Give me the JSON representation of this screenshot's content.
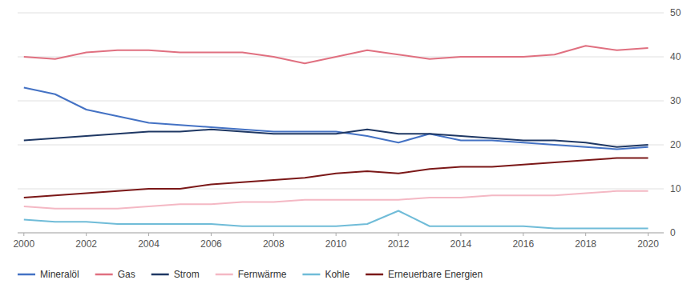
{
  "chart_data": {
    "type": "line",
    "x": [
      2000,
      2001,
      2002,
      2003,
      2004,
      2005,
      2006,
      2007,
      2008,
      2009,
      2010,
      2011,
      2012,
      2013,
      2014,
      2015,
      2016,
      2017,
      2018,
      2019,
      2020
    ],
    "series": [
      {
        "name": "Mineralöl",
        "color": "#4472c4",
        "values": [
          33,
          31.5,
          28,
          26.5,
          25,
          24.5,
          24,
          23.5,
          23,
          23,
          23,
          22,
          20.5,
          22.5,
          21,
          21,
          20.5,
          20,
          19.5,
          19,
          19.5
        ]
      },
      {
        "name": "Gas",
        "color": "#e07080",
        "values": [
          40,
          39.5,
          41,
          41.5,
          41.5,
          41,
          41,
          41,
          40,
          38.5,
          40,
          41.5,
          40.5,
          39.5,
          40,
          40,
          40,
          40.5,
          42.5,
          41.5,
          42
        ]
      },
      {
        "name": "Strom",
        "color": "#1f3864",
        "values": [
          21,
          21.5,
          22,
          22.5,
          23,
          23,
          23.5,
          23,
          22.5,
          22.5,
          22.5,
          23.5,
          22.5,
          22.5,
          22,
          21.5,
          21,
          21,
          20.5,
          19.5,
          20
        ]
      },
      {
        "name": "Fernwärme",
        "color": "#f4b8c4",
        "values": [
          6,
          5.5,
          5.5,
          5.5,
          6,
          6.5,
          6.5,
          7,
          7,
          7.5,
          7.5,
          7.5,
          7.5,
          8,
          8,
          8.5,
          8.5,
          8.5,
          9,
          9.5,
          9.5
        ]
      },
      {
        "name": "Kohle",
        "color": "#70bcd8",
        "values": [
          3,
          2.5,
          2.5,
          2,
          2,
          2,
          2,
          1.5,
          1.5,
          1.5,
          1.5,
          2,
          5,
          1.5,
          1.5,
          1.5,
          1.5,
          1,
          1,
          1,
          1
        ]
      },
      {
        "name": "Erneuerbare Energien",
        "color": "#7b1818",
        "values": [
          8,
          8.5,
          9,
          9.5,
          10,
          10,
          11,
          11.5,
          12,
          12.5,
          13.5,
          14,
          13.5,
          14.5,
          15,
          15,
          15.5,
          16,
          16.5,
          17,
          17
        ]
      }
    ],
    "xlim": [
      1999.8,
      2020.5
    ],
    "xticks": [
      2000,
      2002,
      2004,
      2006,
      2008,
      2010,
      2012,
      2014,
      2016,
      2018,
      2020
    ],
    "ylim": [
      0,
      50
    ],
    "yticks": [
      0,
      10,
      20,
      30,
      40,
      50
    ],
    "grid": true,
    "legend": "bottom"
  }
}
